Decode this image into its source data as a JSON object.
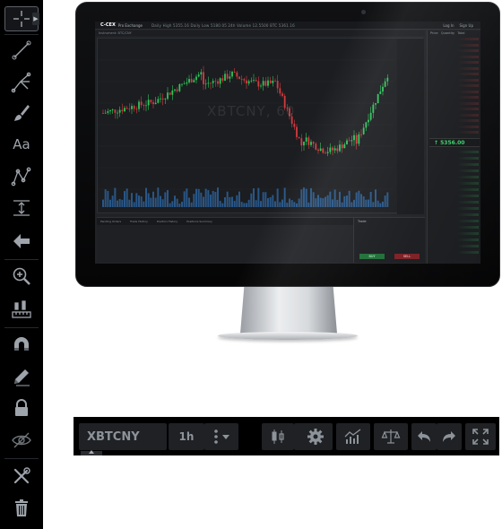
{
  "left_toolbar": {
    "tools": [
      {
        "name": "crosshair-icon"
      },
      {
        "name": "trend-line-icon"
      },
      {
        "name": "pitchfork-icon"
      },
      {
        "name": "brush-icon"
      },
      {
        "name": "text-tool-icon",
        "label": "Aa"
      },
      {
        "name": "pattern-icon"
      },
      {
        "name": "measure-icon"
      },
      {
        "name": "arrow-icon"
      },
      {
        "name": "zoom-in-icon"
      },
      {
        "name": "ruler-icon"
      },
      {
        "name": "magnet-icon"
      },
      {
        "name": "pencil-icon"
      },
      {
        "name": "lock-icon"
      },
      {
        "name": "hide-icon"
      },
      {
        "name": "wrench-icon"
      },
      {
        "name": "trash-icon"
      }
    ],
    "active_tool": "crosshair-icon"
  },
  "screen": {
    "logo": "C-CEX",
    "app_name": "Pro Exchange",
    "stats": "Daily High 5355.16   Daily Low 5180.05   24h Volume 12.5500   BTC 5361.16",
    "top_right": [
      "Market",
      "Limit",
      "Stop",
      "Log In",
      "Sign Up"
    ],
    "market_label": "Instrument: BTC/CNY",
    "watermark": "XBTCNY, 60",
    "last_price": "↑ 5356.00",
    "order_book_header": [
      "Price",
      "Quantity",
      "Total"
    ],
    "bottom_tabs": [
      "Pending Orders",
      "Trade History",
      "Position History",
      "Positions Summary"
    ],
    "order_form_title": "Trade",
    "buy_label": "BUY",
    "sell_label": "SELL",
    "colors": {
      "up": "#31c45a",
      "down": "#d23b3f",
      "volume": "#2f6aa8",
      "background": "#1b1d20"
    }
  },
  "chart_toolbar": {
    "symbol": "XBTCNY",
    "timeframe": "1h",
    "buttons": [
      "more-vertical-icon",
      "chevron-down-icon",
      "candles-icon",
      "chevron-down-icon",
      "gear-icon",
      "indicators-icon",
      "compare-scale-icon",
      "undo-icon",
      "redo-icon",
      "fullscreen-icon"
    ]
  }
}
